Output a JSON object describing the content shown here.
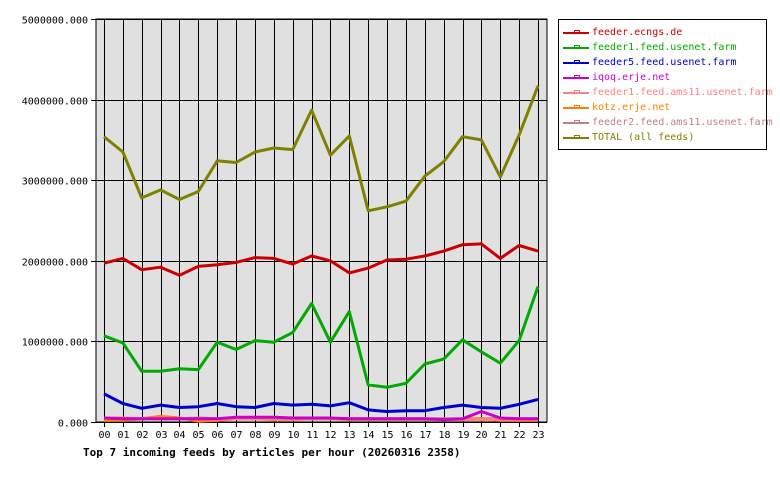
{
  "chart_data": {
    "type": "line",
    "title": "Top 7 incoming feeds by articles per hour (20260316 2358)",
    "xlabel": "",
    "ylabel": "",
    "ylim": [
      0,
      5000000
    ],
    "y_ticks": [
      "0.000",
      "1000000.000",
      "2000000.000",
      "3000000.000",
      "4000000.000",
      "5000000.000"
    ],
    "y_tick_values": [
      0,
      1000000,
      2000000,
      3000000,
      4000000,
      5000000
    ],
    "categories": [
      "00",
      "01",
      "02",
      "03",
      "04",
      "05",
      "06",
      "07",
      "08",
      "09",
      "10",
      "11",
      "12",
      "13",
      "14",
      "15",
      "16",
      "17",
      "18",
      "19",
      "20",
      "21",
      "22",
      "23"
    ],
    "grid": true,
    "legend_position": "right",
    "series": [
      {
        "name": "feeder.ecngs.de",
        "color": "#cc0000",
        "values": [
          1970000,
          2030000,
          1890000,
          1920000,
          1820000,
          1930000,
          1950000,
          1980000,
          2040000,
          2030000,
          1960000,
          2060000,
          2000000,
          1850000,
          1910000,
          2010000,
          2020000,
          2060000,
          2120000,
          2200000,
          2210000,
          2030000,
          2190000,
          2120000
        ]
      },
      {
        "name": "feeder1.feed.usenet.farm",
        "color": "#00aa00",
        "values": [
          1070000,
          980000,
          630000,
          630000,
          660000,
          650000,
          990000,
          900000,
          1010000,
          990000,
          1110000,
          1470000,
          990000,
          1370000,
          460000,
          430000,
          480000,
          720000,
          780000,
          1020000,
          870000,
          730000,
          1010000,
          1680000
        ]
      },
      {
        "name": "feeder5.feed.usenet.farm",
        "color": "#0000cc",
        "values": [
          350000,
          230000,
          170000,
          210000,
          180000,
          190000,
          230000,
          190000,
          180000,
          230000,
          210000,
          220000,
          200000,
          240000,
          150000,
          130000,
          140000,
          140000,
          180000,
          210000,
          180000,
          170000,
          220000,
          280000
        ]
      },
      {
        "name": "iqoq.erje.net",
        "color": "#cc00cc",
        "values": [
          50000,
          40000,
          40000,
          40000,
          40000,
          40000,
          40000,
          60000,
          60000,
          60000,
          50000,
          50000,
          50000,
          40000,
          40000,
          40000,
          40000,
          40000,
          30000,
          40000,
          130000,
          50000,
          40000,
          40000
        ]
      },
      {
        "name": "feeder1.feed.ams11.usenet.farm",
        "color": "#ff8080",
        "values": [
          50000,
          50000,
          40000,
          40000,
          40000,
          40000,
          30000,
          40000,
          40000,
          40000,
          30000,
          40000,
          40000,
          40000,
          30000,
          30000,
          30000,
          30000,
          30000,
          30000,
          30000,
          30000,
          30000,
          30000
        ]
      },
      {
        "name": "kotz.erje.net",
        "color": "#ff8000",
        "values": [
          20000,
          20000,
          40000,
          70000,
          50000,
          10000,
          20000,
          40000,
          40000,
          30000,
          30000,
          40000,
          40000,
          30000,
          30000,
          30000,
          30000,
          30000,
          30000,
          30000,
          40000,
          20000,
          20000,
          20000
        ]
      },
      {
        "name": "feeder2.feed.ams11.usenet.farm",
        "color": "#c08080",
        "values": [
          40000,
          40000,
          40000,
          40000,
          40000,
          50000,
          40000,
          40000,
          40000,
          40000,
          40000,
          40000,
          40000,
          40000,
          40000,
          40000,
          40000,
          40000,
          40000,
          40000,
          40000,
          40000,
          40000,
          40000
        ]
      },
      {
        "name": "TOTAL (all feeds)",
        "color": "#808000",
        "values": [
          3540000,
          3350000,
          2780000,
          2880000,
          2760000,
          2860000,
          3240000,
          3220000,
          3350000,
          3400000,
          3380000,
          3870000,
          3310000,
          3550000,
          2620000,
          2670000,
          2740000,
          3050000,
          3230000,
          3540000,
          3500000,
          3040000,
          3560000,
          4170000
        ]
      }
    ]
  },
  "legend": {
    "items": [
      {
        "label": "feeder.ecngs.de",
        "color": "#cc0000"
      },
      {
        "label": "feeder1.feed.usenet.farm",
        "color": "#00aa00"
      },
      {
        "label": "feeder5.feed.usenet.farm",
        "color": "#0000cc"
      },
      {
        "label": "iqoq.erje.net",
        "color": "#cc00cc"
      },
      {
        "label": "feeder1.feed.ams11.usenet.farm",
        "color": "#ff8080"
      },
      {
        "label": "kotz.erje.net",
        "color": "#ff8000"
      },
      {
        "label": "feeder2.feed.ams11.usenet.farm",
        "color": "#c08080"
      },
      {
        "label": "TOTAL (all feeds)",
        "color": "#808000"
      }
    ]
  },
  "colors": {
    "plot_background": "#e0e0e0",
    "grid": "#000000"
  }
}
